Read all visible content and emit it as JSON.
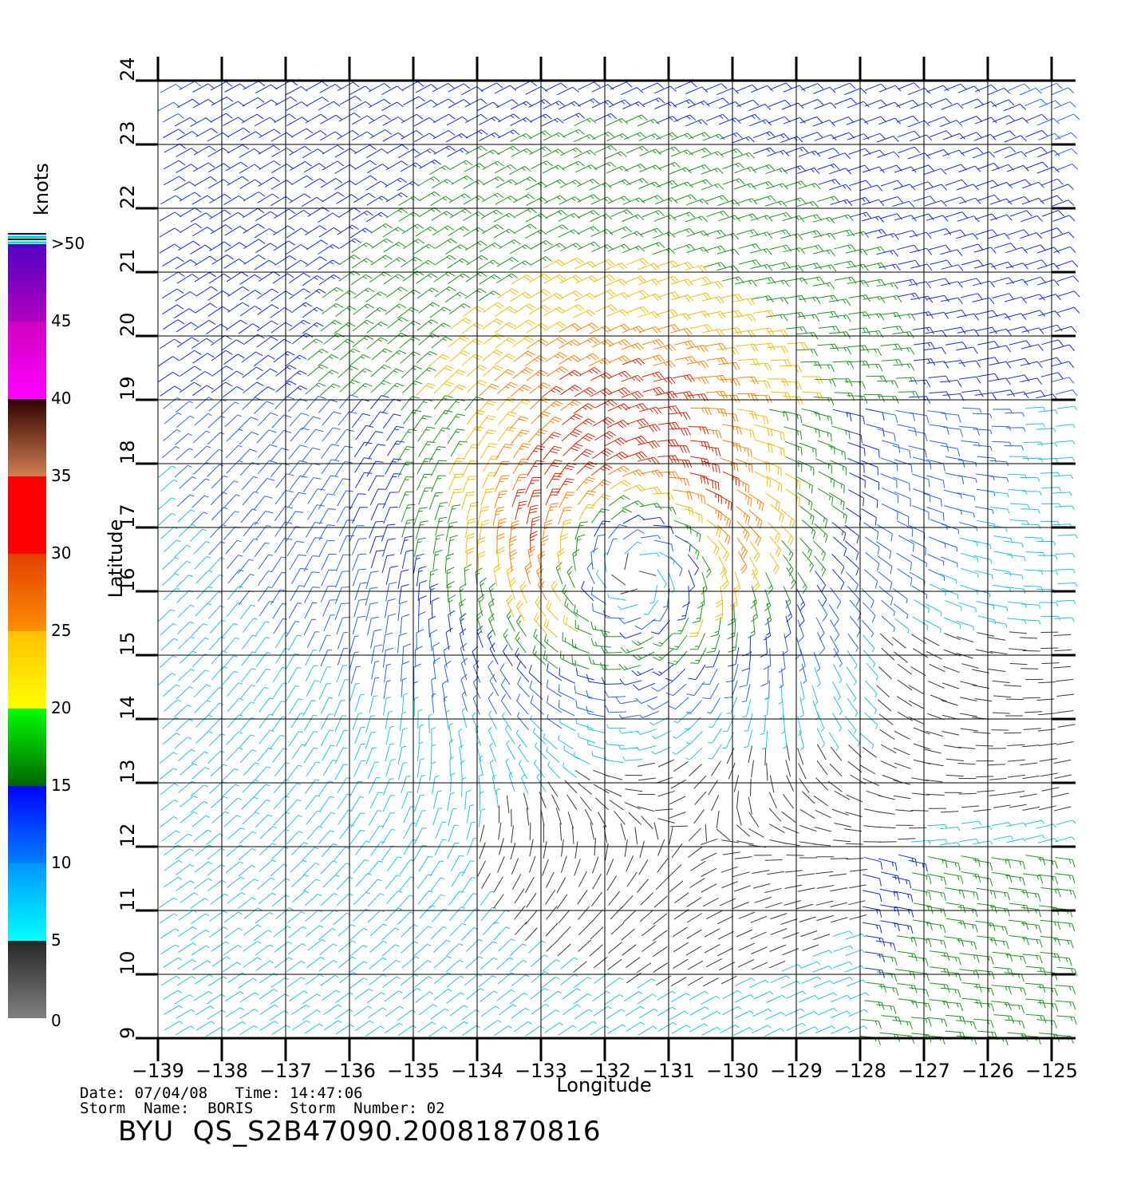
{
  "colorbar": {
    "unit_label": "knots",
    "ticks": [
      "0",
      "5",
      "10",
      "15",
      "20",
      "25",
      "30",
      "35",
      "40",
      "45",
      ">50"
    ],
    "segments": [
      {
        "range": [
          0,
          5
        ],
        "colors": [
          "#808080",
          "#262626"
        ]
      },
      {
        "range": [
          5,
          10
        ],
        "colors": [
          "#00ffff",
          "#0096ff"
        ]
      },
      {
        "range": [
          10,
          15
        ],
        "colors": [
          "#0080ff",
          "#0000ff"
        ]
      },
      {
        "range": [
          15,
          20
        ],
        "colors": [
          "#006600",
          "#00ff00"
        ]
      },
      {
        "range": [
          20,
          25
        ],
        "colors": [
          "#ffff00",
          "#ffc000"
        ]
      },
      {
        "range": [
          25,
          30
        ],
        "colors": [
          "#ff9000",
          "#e04000"
        ]
      },
      {
        "range": [
          30,
          35
        ],
        "colors": [
          "#ff0000",
          "#ff0000"
        ]
      },
      {
        "range": [
          35,
          40
        ],
        "colors": [
          "#d08050",
          "#300000"
        ]
      },
      {
        "range": [
          40,
          45
        ],
        "colors": [
          "#ff00ff",
          "#d000c0"
        ]
      },
      {
        "range": [
          45,
          50
        ],
        "colors": [
          "#b000c0",
          "#5000c0"
        ]
      }
    ]
  },
  "chart_data": {
    "type": "wind-barb map",
    "xlabel": "Longitude",
    "ylabel": "Latitude",
    "xlim": [
      -139,
      -124.6
    ],
    "ylim": [
      9,
      24
    ],
    "x_ticks": [
      -139,
      -138,
      -137,
      -136,
      -135,
      -134,
      -133,
      -132,
      -131,
      -130,
      -129,
      -128,
      -127,
      -126,
      -125
    ],
    "x_tick_labels": [
      "−139",
      "−138",
      "−137",
      "−136",
      "−135",
      "−134",
      "−133",
      "−132",
      "−131",
      "−130",
      "−129",
      "−128",
      "−127",
      "−126",
      "−125"
    ],
    "y_ticks": [
      9,
      10,
      11,
      12,
      13,
      14,
      15,
      16,
      17,
      18,
      19,
      20,
      21,
      22,
      23,
      24
    ],
    "y_tick_labels": [
      "9",
      "10",
      "11",
      "12",
      "13",
      "14",
      "15",
      "16",
      "17",
      "18",
      "19",
      "20",
      "21",
      "22",
      "23",
      "24"
    ],
    "grid": true,
    "storm_center": {
      "lon": -131.6,
      "lat": 16.7
    }
  },
  "footer": {
    "date_line": "Date: 07/04/08   Time: 14:47:06",
    "storm_line": "Storm  Name:  BORIS    Storm  Number: 02",
    "file_label": "BYU  QS_S2B47090.20081870816"
  }
}
